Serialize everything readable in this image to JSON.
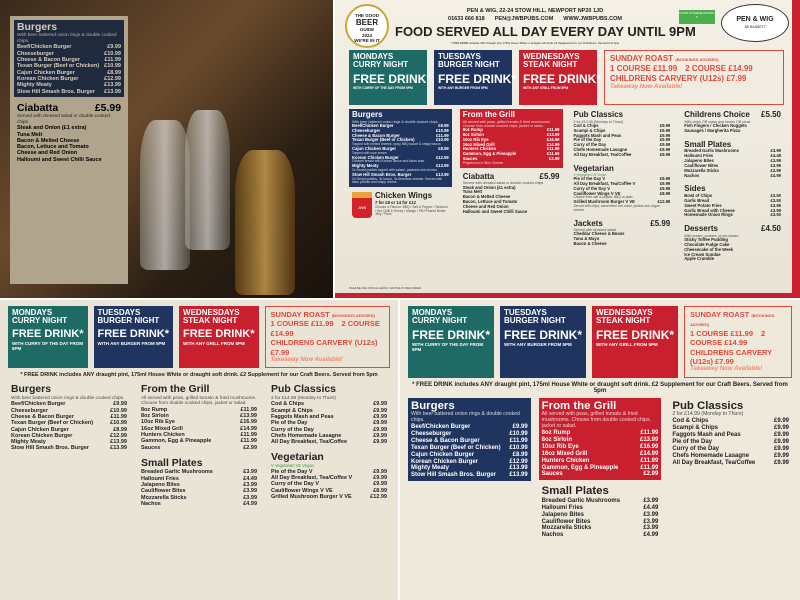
{
  "header": {
    "beer_guide": [
      "THE GOOD",
      "BEER",
      "GUIDE",
      "2024",
      "WE'RE IN IT"
    ],
    "address": "PEN & WIG, 22-24 STOW HILL, NEWPORT NP20 1JD",
    "phone": "01633 666 818",
    "email": "PEN@JWBPUBS.COM",
    "website": "WWW.JWBPUBS.COM",
    "served": "FOOD SERVED ALL DAY EVERY DAY UNTIL 9PM",
    "free_drink_note": "* FREE DRINK includes ANY draught pint, 175ml House White or draught soft drink. £2 Supplement for our Craft Beers. Served from 5pm",
    "logo": "PEN & WIG",
    "logo_sub": "JW BASSETT",
    "rating_label": "FOOD HYGIENE RATING 5"
  },
  "days": [
    {
      "title1": "MONDAYS",
      "title2": "CURRY NIGHT",
      "free": "FREE DRINK*",
      "sub": "WITH CURRY OF THE DAY FROM 5PM",
      "color": "#1e6b66"
    },
    {
      "title1": "TUESDAYS",
      "title2": "BURGER NIGHT",
      "free": "FREE DRINK*",
      "sub": "WITH ANY BURGER FROM 5PM",
      "color": "#1f3560"
    },
    {
      "title1": "WEDNESDAYS",
      "title2": "STEAK NIGHT",
      "free": "FREE DRINK*",
      "sub": "WITH ANY GRILL FROM 5PM",
      "color": "#c8202f"
    }
  ],
  "sunday": {
    "title": "SUNDAY ROAST",
    "advice": "(BOOKINGS ADVISED)",
    "one": "1 COURSE £11.99",
    "two": "2 COURSE £14.99",
    "kids": "CHILDRENS CARVERY (U12s) £7.99",
    "takeaway": "Takeaway Now Available!"
  },
  "sections": {
    "burgers": {
      "title": "Burgers",
      "sub": "With beer battered onion rings & double cooked chips.",
      "items": [
        {
          "name": "Beef/Chicken Burger",
          "price": "£9.99"
        },
        {
          "name": "Cheeseburger",
          "price": "£10.99"
        },
        {
          "name": "Cheese & Bacon Burger",
          "price": "£11.99"
        },
        {
          "name": "Texan Burger (Beef or Chicken)",
          "price": "£10.99",
          "note": "Topped with melted cheese, spicy BBQ sauce & crispy bacon"
        },
        {
          "name": "Cajun Chicken Burger",
          "price": "£8.99",
          "note": "Topped with sour cream"
        },
        {
          "name": "Korean Chicken Burger",
          "price": "£12.99",
          "note": "Chicken breast with Korean sauce and Asian slaw"
        },
        {
          "name": "Mighty Meaty",
          "price": "£13.99",
          "note": "2x Smash patties topped with salami, pastrami and chorizo"
        },
        {
          "name": "Stow Hill Smash Bros. Burger",
          "price": "£13.99",
          "note": "2x Smash patties, 3x bacon, 3x American cheese. Served with slaw, pickles and crispy onions"
        }
      ]
    },
    "grill": {
      "title": "From the Grill",
      "sub": "All served with peas, grilled tomato & fried mushrooms. Choose from double cooked chips, jacket or salad.",
      "items": [
        {
          "name": "8oz Rump",
          "price": "£11.99"
        },
        {
          "name": "8oz Sirloin",
          "price": "£13.99"
        },
        {
          "name": "10oz Rib Eye",
          "price": "£16.99"
        },
        {
          "name": "16oz Mixed Grill",
          "price": "£14.99"
        },
        {
          "name": "Hunters Chicken",
          "price": "£11.99"
        },
        {
          "name": "Gammon, Egg & Pineapple",
          "price": "£11.99"
        },
        {
          "name": "Sauces",
          "price": "£2.99",
          "note": "Peppercorn or Blue Cheese"
        }
      ]
    },
    "ciabatta": {
      "title": "Ciabatta",
      "price": "£5.99",
      "sub": "Served with dressed salad or double cooked chips",
      "items": [
        {
          "name": "Steak and Onion (£1 extra)"
        },
        {
          "name": "Tuna Melt"
        },
        {
          "name": "Bacon & Melted Cheese"
        },
        {
          "name": "Bacon, Lettuce and Tomato"
        },
        {
          "name": "Cheese and Red Onion"
        },
        {
          "name": "Halloumi and Sweet Chilli Sauce"
        }
      ]
    },
    "wings": {
      "title": "Chicken Wings",
      "sub": "7 for £8 or 14 for £12",
      "note": "Choose a Flavour: BBQ / Salt & Pepper / Tandoori / Hot Chilli & Honey / Mango / PBJ Peanut Butter Jelly / Plain",
      "bucket_text": "JWB"
    },
    "pub": {
      "title": "Pub Classics",
      "sub": "2 for £14.99 (Monday to Thurs)",
      "items": [
        {
          "name": "Cod & Chips",
          "price": "£9.99"
        },
        {
          "name": "Scampi & Chips",
          "price": "£9.99"
        },
        {
          "name": "Faggots Mash and Peas",
          "price": "£9.99"
        },
        {
          "name": "Pie of the Day",
          "price": "£9.99"
        },
        {
          "name": "Curry of the Day",
          "price": "£9.99"
        },
        {
          "name": "Chefs Homemade Lasagne",
          "price": "£9.99"
        },
        {
          "name": "All Day Breakfast, Tea/Coffee",
          "price": "£9.99"
        }
      ]
    },
    "veg": {
      "title": "Vegetarian",
      "key": "V Vegetarian  VE Vegan",
      "items": [
        {
          "name": "Pie of the Day V",
          "price": "£9.99"
        },
        {
          "name": "All Day Breakfast, Tea/Coffee V",
          "price": "£9.99"
        },
        {
          "name": "Curry of the Day V",
          "price": "£9.99"
        },
        {
          "name": "Cauliflower Wings V VE",
          "price": "£8.99",
          "note": "Choose from salt & pepper, BBQ or plain"
        },
        {
          "name": "Grilled Mushroom Burger V VE",
          "price": "£12.99",
          "note": "Served with chips, camembert red onion, pickles and vegan cheese"
        }
      ]
    },
    "jackets": {
      "title": "Jackets",
      "price": "£5.99",
      "sub": "Served with dressed salad.",
      "items": [
        {
          "name": "Cheddar Cheese & Beans"
        },
        {
          "name": "Tuna & Mayo"
        },
        {
          "name": "Bacon & Cheese"
        }
      ]
    },
    "kids": {
      "title": "Childrens Choice",
      "price": "£5.50",
      "sub": "With chips OR mash and beans OR peas",
      "items": [
        {
          "name": "Fish Fingers / Chicken Nuggets"
        },
        {
          "name": "Sausages / Margherita Pizza"
        }
      ]
    },
    "small": {
      "title": "Small Plates",
      "items": [
        {
          "name": "Breaded Garlic Mushrooms",
          "price": "£3.99"
        },
        {
          "name": "Halloumi Fries",
          "price": "£4.49"
        },
        {
          "name": "Jalapeno Bites",
          "price": "£3.99"
        },
        {
          "name": "Cauliflower Bites",
          "price": "£3.99"
        },
        {
          "name": "Mozzarella Sticks",
          "price": "£3.99"
        },
        {
          "name": "Nachos",
          "price": "£4.99"
        }
      ]
    },
    "sides": {
      "title": "Sides",
      "items": [
        {
          "name": "Bowl of Chips",
          "price": "£3.50"
        },
        {
          "name": "Garlic Bread",
          "price": "£3.50"
        },
        {
          "name": "Sweet Potato Fries",
          "price": "£3.99"
        },
        {
          "name": "Garlic Bread with Cheese",
          "price": "£3.99"
        },
        {
          "name": "Homemade Onion Rings",
          "price": "£3.50"
        }
      ]
    },
    "desserts": {
      "title": "Desserts",
      "price": "£4.50",
      "sub": "With cream, custard, or ice-cream",
      "items": [
        {
          "name": "Sticky Toffee Pudding"
        },
        {
          "name": "Chocolate Fudge Cake"
        },
        {
          "name": "Cheesecake of the Week"
        },
        {
          "name": "Ice Cream Sundae"
        },
        {
          "name": "Apple Crumble"
        }
      ]
    }
  },
  "footer": "PLEASE ASK FOR ALLERGY ADVICE IF REQUIRED",
  "colors": {
    "red": "#c8202f",
    "navy": "#1f3560",
    "teal": "#1e6b66",
    "cream": "#f4f0e6"
  }
}
